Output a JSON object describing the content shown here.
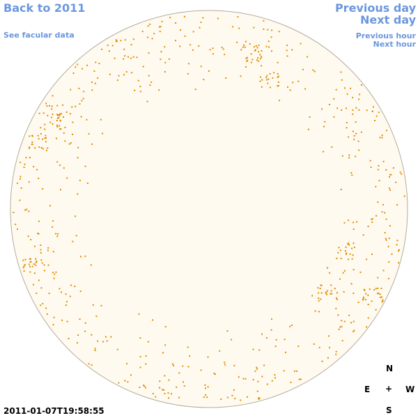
{
  "nav": {
    "back": "Back to 2011",
    "facular_data": "See facular data",
    "previous_day": "Previous day",
    "next_day": "Next day",
    "previous_hour": "Previous hour",
    "next_hour": "Next hour"
  },
  "timestamp": "2011-01-07T19:58:55",
  "compass": {
    "north": "N",
    "east": "E",
    "center": "+",
    "west": "W",
    "south": "S"
  }
}
